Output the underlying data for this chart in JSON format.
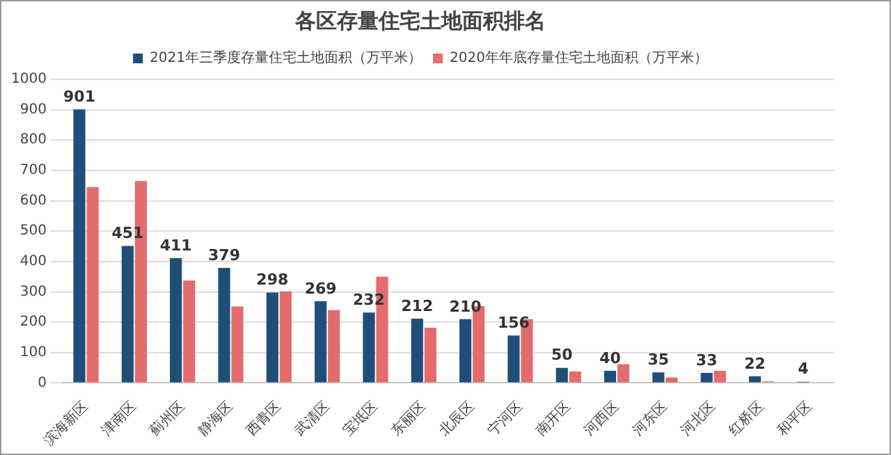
{
  "chart_data": {
    "type": "bar",
    "title": "各区存量住宅土地面积排名",
    "categories": [
      "滨海新区",
      "津南区",
      "蓟州区",
      "静海区",
      "西青区",
      "武清区",
      "宝坻区",
      "东丽区",
      "北辰区",
      "宁河区",
      "南开区",
      "河西区",
      "河东区",
      "河北区",
      "红桥区",
      "和平区"
    ],
    "series": [
      {
        "name": "2021年三季度存量住宅土地面积（万平米）",
        "color": "#1f4e79",
        "values": [
          901,
          451,
          411,
          379,
          298,
          269,
          232,
          212,
          210,
          156,
          50,
          40,
          35,
          33,
          22,
          4
        ],
        "value_labels": [
          "901",
          "451",
          "411",
          "379",
          "298",
          "269",
          "232",
          "212",
          "210",
          "156",
          "50",
          "40",
          "35",
          "33",
          "22",
          "4"
        ]
      },
      {
        "name": "2020年年底存量住宅土地面积（万平米）",
        "color": "#e46c6c",
        "values": [
          645,
          665,
          337,
          252,
          302,
          240,
          350,
          182,
          253,
          210,
          38,
          62,
          18,
          40,
          5,
          0
        ]
      }
    ],
    "ylim": [
      0,
      1000
    ],
    "yticks": [
      0,
      100,
      200,
      300,
      400,
      500,
      600,
      700,
      800,
      900,
      1000
    ],
    "grid": "y",
    "legend": "top"
  }
}
